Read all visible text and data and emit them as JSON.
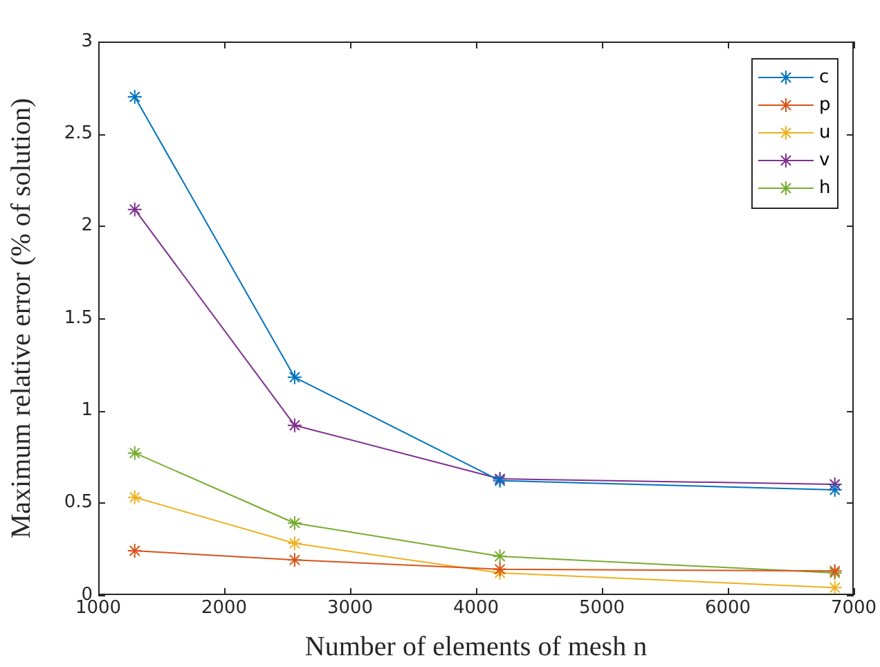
{
  "chart_data": {
    "type": "line",
    "xlabel": "Number of elements of mesh n",
    "ylabel": "Maximum relative error (% of solution)",
    "x": [
      1290,
      2560,
      4190,
      6850
    ],
    "xlim": [
      1000,
      7000
    ],
    "xticks": [
      1000,
      2000,
      3000,
      4000,
      5000,
      6000,
      7000
    ],
    "ylim": [
      0,
      3
    ],
    "yticks": [
      0,
      0.5,
      1,
      1.5,
      2,
      2.5,
      3
    ],
    "grid": false,
    "legend": "top right",
    "marker": "cross",
    "line_style": "solid",
    "series": [
      {
        "name": "c",
        "color": "#0072bd",
        "values": [
          2.7,
          1.18,
          0.62,
          0.57
        ]
      },
      {
        "name": "p",
        "color": "#d95319",
        "values": [
          0.24,
          0.19,
          0.14,
          0.13
        ]
      },
      {
        "name": "u",
        "color": "#edb120",
        "values": [
          0.53,
          0.28,
          0.12,
          0.04
        ]
      },
      {
        "name": "v",
        "color": "#7e2f8e",
        "values": [
          2.09,
          0.92,
          0.63,
          0.6
        ]
      },
      {
        "name": "h",
        "color": "#77ac30",
        "values": [
          0.77,
          0.39,
          0.21,
          0.12
        ]
      }
    ]
  }
}
